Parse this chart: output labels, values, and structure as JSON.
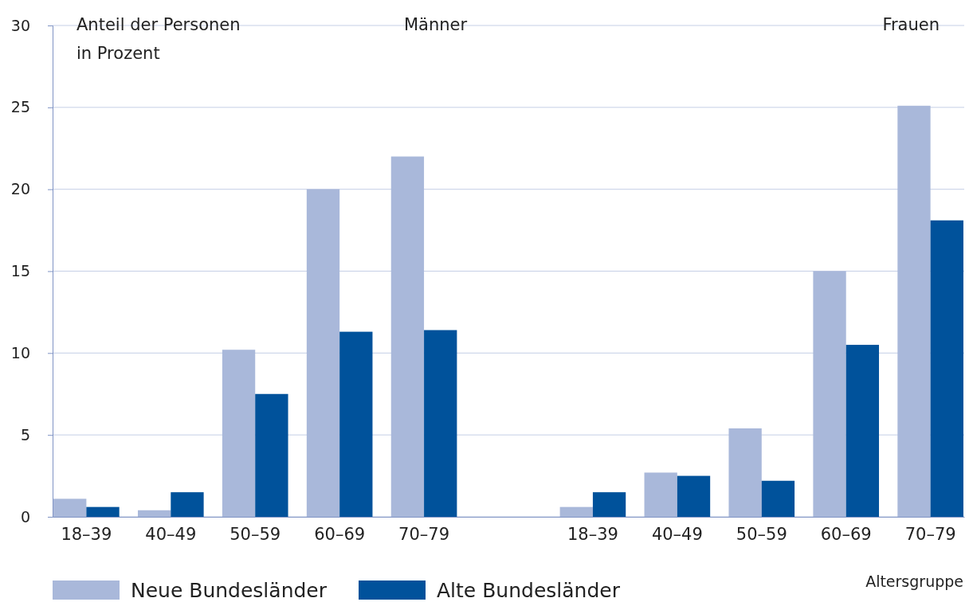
{
  "chart_data": {
    "type": "bar",
    "ylabel": "Anteil der Personen in Prozent",
    "xlabel": "Altersgruppe",
    "categories": [
      "18–39",
      "40–49",
      "50–59",
      "60–69",
      "70–79",
      null,
      "18–39",
      "40–49",
      "50–59",
      "60–69",
      "70–79"
    ],
    "series": [
      {
        "name": "Neue Bundesländer",
        "color": "#a9b8da",
        "values": [
          1.1,
          0.4,
          10.2,
          20.0,
          22.0,
          null,
          0.6,
          2.7,
          5.4,
          15.0,
          25.1
        ]
      },
      {
        "name": "Alte Bundesländer",
        "color": "#00529b",
        "values": [
          0.6,
          1.5,
          7.5,
          11.3,
          11.4,
          null,
          1.5,
          2.5,
          2.2,
          10.5,
          18.1
        ]
      }
    ],
    "ylim": [
      0,
      30
    ],
    "yticks": [
      0,
      5,
      10,
      15,
      20,
      25,
      30
    ],
    "grid": "y",
    "legend": "bottom",
    "annotations": [
      "Männer",
      "Frauen"
    ]
  }
}
